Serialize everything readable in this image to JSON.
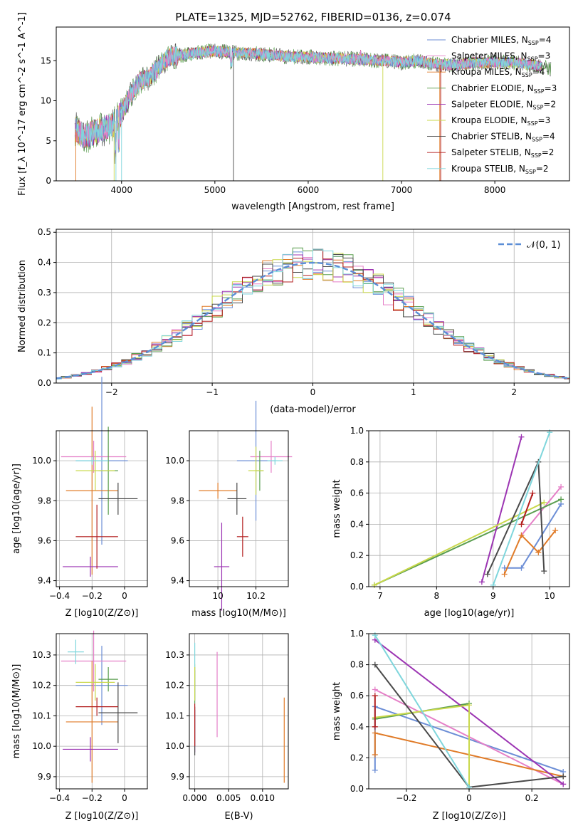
{
  "title": "PLATE=1325, MJD=52762, FIBERID=0136, z=0.074",
  "series_colors": [
    "#6c8ed6",
    "#e57fc7",
    "#e07b28",
    "#5a9e4f",
    "#9c35b3",
    "#c9d84b",
    "#4a4a4a",
    "#b31e1e",
    "#7fd6dc"
  ],
  "legend_labels": [
    "Chabrier MILES, N_SSP=4",
    "Salpeter MILES, N_SSP=3",
    "Kroupa MILES, N_SSP=4",
    "Chabrier ELODIE, N_SSP=3",
    "Salpeter ELODIE, N_SSP=2",
    "Kroupa ELODIE, N_SSP=3",
    "Chabrier STELIB, N_SSP=4",
    "Salpeter STELIB, N_SSP=2",
    "Kroupa STELIB, N_SSP=2"
  ],
  "chart_data": [
    {
      "id": "spectrum",
      "type": "line",
      "xlabel": "wavelength [Angstrom, rest frame]",
      "ylabel": "Flux [f_λ 10^-17 erg cm^-2 s^-1 A^-1]",
      "xlim": [
        3300,
        8800
      ],
      "ylim": [
        0,
        19.2
      ],
      "xticks": [
        4000,
        5000,
        6000,
        7000,
        8000
      ],
      "yticks": [
        0,
        5,
        10,
        15
      ],
      "grid": false,
      "legend": "top-right",
      "continuum_nodes": {
        "x": [
          3500,
          3600,
          3700,
          3800,
          3900,
          4000,
          4100,
          4200,
          4300,
          4400,
          4500,
          4600,
          4800,
          5000,
          5200,
          5500,
          5800,
          6000,
          6200,
          6500,
          6800,
          7000,
          7200,
          7400,
          7600,
          7800,
          8000,
          8200,
          8400,
          8600
        ],
        "y": [
          6.5,
          5.5,
          6.0,
          6.5,
          6.8,
          8.5,
          10.8,
          12.5,
          13.0,
          14.2,
          15.4,
          15.6,
          16.0,
          16.2,
          16.0,
          15.8,
          15.5,
          15.5,
          15.3,
          15.2,
          15.0,
          14.8,
          15.0,
          14.5,
          14.5,
          14.8,
          14.8,
          14.8,
          14.5,
          14.0
        ]
      }
    },
    {
      "id": "residual_hist",
      "type": "line",
      "xlabel": "(data-model)/error",
      "ylabel": "Normed distribution",
      "xlim": [
        -2.55,
        2.55
      ],
      "ylim": [
        0,
        0.51
      ],
      "xticks": [
        -2,
        -1,
        0,
        1,
        2
      ],
      "yticks": [
        0.0,
        0.1,
        0.2,
        0.3,
        0.4,
        0.5
      ],
      "grid": true,
      "legend": "top-right",
      "legend_label": "𝒩(0, 1)",
      "bin_width": 0.1
    },
    {
      "id": "age_vs_Z",
      "type": "scatter",
      "xlabel": "Z [log10(Z/Z⊙)]",
      "ylabel": "age  [log10(age/yr)]",
      "xlim": [
        -0.42,
        0.14
      ],
      "ylim": [
        9.37,
        10.15
      ],
      "xticks": [
        -0.4,
        -0.2,
        0.0
      ],
      "yticks": [
        9.4,
        9.6,
        9.8,
        10.0
      ],
      "grid": true,
      "points": [
        {
          "s": 0,
          "x": -0.14,
          "xerr": 0.16,
          "y": 10.0,
          "yerr": 0.42
        },
        {
          "s": 1,
          "x": -0.19,
          "xerr": 0.2,
          "y": 10.02,
          "yerr": 0.08
        },
        {
          "s": 2,
          "x": -0.2,
          "xerr": 0.16,
          "y": 9.85,
          "yerr": 0.42
        },
        {
          "s": 3,
          "x": -0.1,
          "xerr": 0.06,
          "y": 9.95,
          "yerr": 0.22
        },
        {
          "s": 4,
          "x": -0.21,
          "xerr": 0.17,
          "y": 9.47,
          "yerr": 0.05
        },
        {
          "s": 5,
          "x": -0.18,
          "xerr": 0.12,
          "y": 9.95,
          "yerr": 0.1
        },
        {
          "s": 6,
          "x": -0.04,
          "xerr": 0.12,
          "y": 9.81,
          "yerr": 0.08
        },
        {
          "s": 7,
          "x": -0.17,
          "xerr": 0.13,
          "y": 9.62,
          "yerr": 0.16
        },
        {
          "s": 8,
          "x": -0.2,
          "xerr": 0.1,
          "y": 10.0,
          "yerr": 0.02
        }
      ]
    },
    {
      "id": "age_vs_mass",
      "type": "scatter",
      "xlabel": "mass [log10(M/M⊙)]",
      "ylabel": "",
      "xlim": [
        9.85,
        10.37
      ],
      "ylim": [
        9.37,
        10.15
      ],
      "xticks": [
        10.0,
        10.2
      ],
      "yticks": [
        9.4,
        9.6,
        9.8,
        10.0
      ],
      "grid": true,
      "points": [
        {
          "s": 0,
          "x": 10.2,
          "xerr": 0.1,
          "y": 10.0,
          "yerr": 0.3
        },
        {
          "s": 1,
          "x": 10.28,
          "xerr": 0.11,
          "y": 10.02,
          "yerr": 0.08
        },
        {
          "s": 2,
          "x": 10.0,
          "xerr": 0.1,
          "y": 9.85,
          "yerr": 0.04
        },
        {
          "s": 3,
          "x": 10.22,
          "xerr": 0.02,
          "y": 9.95,
          "yerr": 0.1
        },
        {
          "s": 4,
          "x": 10.02,
          "xerr": 0.04,
          "y": 9.47,
          "yerr": 0.22
        },
        {
          "s": 5,
          "x": 10.2,
          "xerr": 0.04,
          "y": 9.95,
          "yerr": 0.12
        },
        {
          "s": 6,
          "x": 10.1,
          "xerr": 0.05,
          "y": 9.81,
          "yerr": 0.08
        },
        {
          "s": 7,
          "x": 10.13,
          "xerr": 0.03,
          "y": 9.62,
          "yerr": 0.1
        },
        {
          "s": 8,
          "x": 10.3,
          "xerr": 0.04,
          "y": 10.0,
          "yerr": 0.02
        }
      ]
    },
    {
      "id": "weight_vs_age",
      "type": "line",
      "xlabel": "age  [log10(age/yr)]",
      "ylabel": "mass weight",
      "xlim": [
        6.8,
        10.35
      ],
      "ylim": [
        0.0,
        1.0
      ],
      "xticks": [
        7,
        8,
        9,
        10
      ],
      "yticks": [
        0.0,
        0.2,
        0.4,
        0.6,
        0.8,
        1.0
      ],
      "grid": true,
      "series": [
        {
          "s": 0,
          "x": [
            9.2,
            9.5,
            10.2
          ],
          "y": [
            0.12,
            0.12,
            0.53
          ]
        },
        {
          "s": 1,
          "x": [
            9.5,
            10.2
          ],
          "y": [
            0.33,
            0.64
          ]
        },
        {
          "s": 2,
          "x": [
            9.2,
            9.5,
            9.8,
            10.1
          ],
          "y": [
            0.08,
            0.33,
            0.22,
            0.36
          ]
        },
        {
          "s": 3,
          "x": [
            6.9,
            10.2
          ],
          "y": [
            0.01,
            0.56
          ]
        },
        {
          "s": 4,
          "x": [
            8.8,
            9.5
          ],
          "y": [
            0.03,
            0.96
          ]
        },
        {
          "s": 5,
          "x": [
            6.9,
            9.9
          ],
          "y": [
            0.01,
            0.54
          ]
        },
        {
          "s": 6,
          "x": [
            8.9,
            9.8,
            9.9
          ],
          "y": [
            0.08,
            0.8,
            0.1
          ]
        },
        {
          "s": 7,
          "x": [
            9.5,
            9.7
          ],
          "y": [
            0.4,
            0.6
          ]
        },
        {
          "s": 8,
          "x": [
            9.0,
            10.0
          ],
          "y": [
            0.01,
            0.99
          ]
        }
      ]
    },
    {
      "id": "mass_vs_Z",
      "type": "scatter",
      "xlabel": "Z [log10(Z/Z⊙)]",
      "ylabel": "mass [log10(M/M⊙)]",
      "xlim": [
        -0.42,
        0.14
      ],
      "ylim": [
        9.86,
        10.37
      ],
      "xticks": [
        -0.4,
        -0.2,
        0.0
      ],
      "yticks": [
        9.9,
        10.0,
        10.1,
        10.2,
        10.3
      ],
      "grid": true,
      "points": [
        {
          "s": 0,
          "x": -0.14,
          "xerr": 0.16,
          "y": 10.2,
          "yerr": 0.13
        },
        {
          "s": 1,
          "x": -0.19,
          "xerr": 0.2,
          "y": 10.28,
          "yerr": 0.1
        },
        {
          "s": 2,
          "x": -0.2,
          "xerr": 0.16,
          "y": 10.08,
          "yerr": 0.2
        },
        {
          "s": 3,
          "x": -0.1,
          "xerr": 0.06,
          "y": 10.22,
          "yerr": 0.04
        },
        {
          "s": 4,
          "x": -0.21,
          "xerr": 0.17,
          "y": 9.99,
          "yerr": 0.04
        },
        {
          "s": 5,
          "x": -0.18,
          "xerr": 0.12,
          "y": 10.21,
          "yerr": 0.06
        },
        {
          "s": 6,
          "x": -0.04,
          "xerr": 0.12,
          "y": 10.11,
          "yerr": 0.1
        },
        {
          "s": 7,
          "x": -0.17,
          "xerr": 0.13,
          "y": 10.13,
          "yerr": 0.03
        },
        {
          "s": 8,
          "x": -0.3,
          "xerr": 0.05,
          "y": 10.31,
          "yerr": 0.04
        }
      ]
    },
    {
      "id": "mass_vs_ebv",
      "type": "scatter",
      "xlabel": "E(B-V)",
      "ylabel": "",
      "xlim": [
        -0.0008,
        0.0138
      ],
      "ylim": [
        9.86,
        10.37
      ],
      "xticks": [
        0.0,
        0.005,
        0.01
      ],
      "xticklabels": [
        "0.000",
        "0.005",
        "0.010"
      ],
      "yticks": [
        9.9,
        10.0,
        10.1,
        10.2,
        10.3
      ],
      "grid": true,
      "points": [
        {
          "s": 0,
          "x": 0.0,
          "xerr": 0,
          "y": 10.2,
          "yerr": 0.05
        },
        {
          "s": 1,
          "x": 0.0033,
          "xerr": 0,
          "y": 10.17,
          "yerr": 0.14
        },
        {
          "s": 2,
          "x": 0.0132,
          "xerr": 0,
          "y": 10.02,
          "yerr": 0.14
        },
        {
          "s": 3,
          "x": 0.0,
          "xerr": 0,
          "y": 10.2,
          "yerr": 0.06
        },
        {
          "s": 4,
          "x": 0.0,
          "xerr": 0,
          "y": 10.05,
          "yerr": 0.07
        },
        {
          "s": 5,
          "x": 0.0,
          "xerr": 0,
          "y": 10.21,
          "yerr": 0.06
        },
        {
          "s": 6,
          "x": 0.0,
          "xerr": 0,
          "y": 10.05,
          "yerr": 0.08
        },
        {
          "s": 7,
          "x": 0.0,
          "xerr": 0,
          "y": 10.07,
          "yerr": 0.07
        },
        {
          "s": 8,
          "x": 0.0,
          "xerr": 0,
          "y": 10.3,
          "yerr": 0.04
        }
      ]
    },
    {
      "id": "weight_vs_Z",
      "type": "line",
      "xlabel": "Z [log10(Z/Z⊙)]",
      "ylabel": "mass weight",
      "xlim": [
        -0.32,
        0.32
      ],
      "ylim": [
        0.0,
        1.0
      ],
      "xticks": [
        -0.2,
        0.0,
        0.2
      ],
      "yticks": [
        0.0,
        0.2,
        0.4,
        0.6,
        0.8,
        1.0
      ],
      "grid": true,
      "series": [
        {
          "s": 0,
          "x": [
            -0.3,
            -0.3,
            0.3
          ],
          "y": [
            0.12,
            0.53,
            0.11
          ]
        },
        {
          "s": 1,
          "x": [
            -0.3,
            0.3
          ],
          "y": [
            0.64,
            0.03
          ]
        },
        {
          "s": 2,
          "x": [
            -0.3,
            -0.3,
            0.3
          ],
          "y": [
            0.22,
            0.36,
            0.08
          ]
        },
        {
          "s": 3,
          "x": [
            -0.3,
            0.0
          ],
          "y": [
            0.45,
            0.55
          ]
        },
        {
          "s": 4,
          "x": [
            -0.3,
            0.3
          ],
          "y": [
            0.96,
            0.03
          ]
        },
        {
          "s": 5,
          "x": [
            -0.3,
            0.0,
            0.0
          ],
          "y": [
            0.46,
            0.54,
            0.01
          ]
        },
        {
          "s": 6,
          "x": [
            -0.3,
            0.0,
            0.3
          ],
          "y": [
            0.8,
            0.01,
            0.08
          ]
        },
        {
          "s": 7,
          "x": [
            -0.3,
            -0.3
          ],
          "y": [
            0.4,
            0.6
          ]
        },
        {
          "s": 8,
          "x": [
            -0.3,
            0.0
          ],
          "y": [
            0.99,
            0.01
          ]
        }
      ]
    }
  ]
}
